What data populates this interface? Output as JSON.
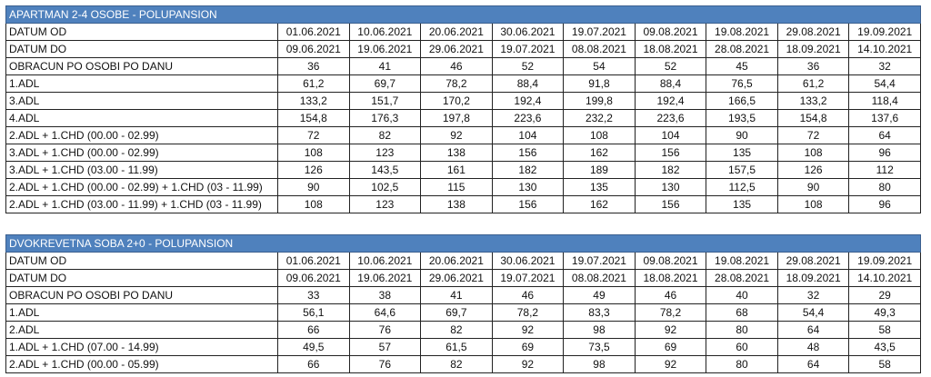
{
  "tables": [
    {
      "title": "APARTMAN  2-4 OSOBE - POLUPANSION",
      "rows": [
        {
          "label": "DATUM OD",
          "values": [
            "01.06.2021",
            "10.06.2021",
            "20.06.2021",
            "30.06.2021",
            "19.07.2021",
            "09.08.2021",
            "19.08.2021",
            "29.08.2021",
            "19.09.2021"
          ]
        },
        {
          "label": "DATUM DO",
          "values": [
            "09.06.2021",
            "19.06.2021",
            "29.06.2021",
            "19.07.2021",
            "08.08.2021",
            "18.08.2021",
            "28.08.2021",
            "18.09.2021",
            "14.10.2021"
          ]
        },
        {
          "label": "OBRACUN PO OSOBI PO DANU",
          "values": [
            "36",
            "41",
            "46",
            "52",
            "54",
            "52",
            "45",
            "36",
            "32"
          ]
        },
        {
          "label": "1.ADL",
          "values": [
            "61,2",
            "69,7",
            "78,2",
            "88,4",
            "91,8",
            "88,4",
            "76,5",
            "61,2",
            "54,4"
          ]
        },
        {
          "label": "3.ADL",
          "values": [
            "133,2",
            "151,7",
            "170,2",
            "192,4",
            "199,8",
            "192,4",
            "166,5",
            "133,2",
            "118,4"
          ]
        },
        {
          "label": "4.ADL",
          "values": [
            "154,8",
            "176,3",
            "197,8",
            "223,6",
            "232,2",
            "223,6",
            "193,5",
            "154,8",
            "137,6"
          ]
        },
        {
          "label": "2.ADL + 1.CHD (00.00 - 02.99)",
          "values": [
            "72",
            "82",
            "92",
            "104",
            "108",
            "104",
            "90",
            "72",
            "64"
          ]
        },
        {
          "label": "3.ADL + 1.CHD (00.00 - 02.99)",
          "values": [
            "108",
            "123",
            "138",
            "156",
            "162",
            "156",
            "135",
            "108",
            "96"
          ]
        },
        {
          "label": "3.ADL + 1.CHD (03.00 - 11.99)",
          "values": [
            "126",
            "143,5",
            "161",
            "182",
            "189",
            "182",
            "157,5",
            "126",
            "112"
          ]
        },
        {
          "label": "2.ADL + 1.CHD (00.00 - 02.99) + 1.CHD (03 - 11.99)",
          "values": [
            "90",
            "102,5",
            "115",
            "130",
            "135",
            "130",
            "112,5",
            "90",
            "80"
          ]
        },
        {
          "label": "2.ADL + 1.CHD (03.00 - 11.99) + 1.CHD (03 - 11.99)",
          "values": [
            "108",
            "123",
            "138",
            "156",
            "162",
            "156",
            "135",
            "108",
            "96"
          ]
        }
      ]
    },
    {
      "title": "DVOKREVETNA SOBA  2+0 - POLUPANSION",
      "rows": [
        {
          "label": "DATUM OD",
          "values": [
            "01.06.2021",
            "10.06.2021",
            "20.06.2021",
            "30.06.2021",
            "19.07.2021",
            "09.08.2021",
            "19.08.2021",
            "29.08.2021",
            "19.09.2021"
          ]
        },
        {
          "label": "DATUM DO",
          "values": [
            "09.06.2021",
            "19.06.2021",
            "29.06.2021",
            "19.07.2021",
            "08.08.2021",
            "18.08.2021",
            "28.08.2021",
            "18.09.2021",
            "14.10.2021"
          ]
        },
        {
          "label": "OBRACUN PO OSOBI PO DANU",
          "values": [
            "33",
            "38",
            "41",
            "46",
            "49",
            "46",
            "40",
            "32",
            "29"
          ]
        },
        {
          "label": "1.ADL",
          "values": [
            "56,1",
            "64,6",
            "69,7",
            "78,2",
            "83,3",
            "78,2",
            "68",
            "54,4",
            "49,3"
          ]
        },
        {
          "label": "2.ADL",
          "values": [
            "66",
            "76",
            "82",
            "92",
            "98",
            "92",
            "80",
            "64",
            "58"
          ]
        },
        {
          "label": "1.ADL + 1.CHD (07.00 - 14.99)",
          "values": [
            "49,5",
            "57",
            "61,5",
            "69",
            "73,5",
            "69",
            "60",
            "48",
            "43,5"
          ]
        },
        {
          "label": "2.ADL + 1.CHD (00.00 - 05.99)",
          "values": [
            "66",
            "76",
            "82",
            "92",
            "98",
            "92",
            "80",
            "64",
            "58"
          ]
        }
      ]
    }
  ],
  "colors": {
    "title_bg": "#4f81bd",
    "title_text": "#ffffff"
  }
}
